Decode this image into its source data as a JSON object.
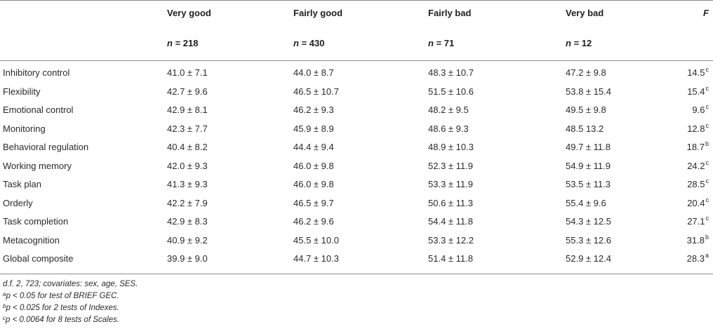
{
  "header": {
    "col1": "Very good",
    "col2": "Fairly good",
    "col3": "Fairly bad",
    "col4": "Very bad",
    "colF": "F"
  },
  "n_row": {
    "col1": "n = 218",
    "col2": "n = 430",
    "col3": "n = 71",
    "col4": "n = 12"
  },
  "rows": [
    {
      "label": "Inhibitory control",
      "c1": "41.0 ± 7.1",
      "c2": "44.0 ± 8.7",
      "c3": "48.3 ± 10.7",
      "c4": "47.2 ± 9.8",
      "f": "14.5",
      "sup": "c"
    },
    {
      "label": "Flexibility",
      "c1": "42.7 ± 9.6",
      "c2": "46.5 ± 10.7",
      "c3": "51.5 ± 10.6",
      "c4": "53.8 ± 15.4",
      "f": "15.4",
      "sup": "c"
    },
    {
      "label": "Emotional control",
      "c1": "42.9 ± 8.1",
      "c2": "46.2 ± 9.3",
      "c3": "48.2 ± 9.5",
      "c4": "49.5 ± 9.8",
      "f": "9.6",
      "sup": "c"
    },
    {
      "label": "Monitoring",
      "c1": "42.3 ± 7.7",
      "c2": "45.9 ± 8.9",
      "c3": "48.6 ± 9.3",
      "c4": "48.5 13.2",
      "f": "12.8",
      "sup": "c"
    },
    {
      "label": "Behavioral regulation",
      "c1": "40.4 ± 8.2",
      "c2": "44.4 ± 9.4",
      "c3": "48.9 ± 10.3",
      "c4": "49.7 ± 11.8",
      "f": "18.7",
      "sup": "b"
    },
    {
      "label": "Working memory",
      "c1": "42.0 ± 9.3",
      "c2": "46.0 ± 9.8",
      "c3": "52.3 ± 11.9",
      "c4": "54.9 ± 11.9",
      "f": "24.2",
      "sup": "c"
    },
    {
      "label": "Task plan",
      "c1": "41.3 ± 9.3",
      "c2": "46.0 ± 9.8",
      "c3": "53.3 ± 11.9",
      "c4": "53.5 ± 11.3",
      "f": "28.5",
      "sup": "c"
    },
    {
      "label": "Orderly",
      "c1": "42.2 ± 7.9",
      "c2": "46.5 ± 9.7",
      "c3": "50.6 ± 11.3",
      "c4": "55.4 ± 9.6",
      "f": "20.4",
      "sup": "c"
    },
    {
      "label": "Task completion",
      "c1": "42.9 ± 8.3",
      "c2": "46.2 ± 9.6",
      "c3": "54.4 ± 11.8",
      "c4": "54.3 ± 12.5",
      "f": "27.1",
      "sup": "c"
    },
    {
      "label": "Metacognition",
      "c1": "40.9 ± 9.2",
      "c2": "45.5 ± 10.0",
      "c3": "53.3 ± 12.2",
      "c4": "55.3 ± 12.6",
      "f": "31.8",
      "sup": "b"
    },
    {
      "label": "Global composite",
      "c1": "39.9 ± 9.0",
      "c2": "44.7 ± 10.3",
      "c3": "51.4 ± 11.8",
      "c4": "52.9 ± 12.4",
      "f": "28.3",
      "sup": "a"
    }
  ],
  "notes": {
    "line1": "d.f. 2, 723; covariates: sex, age, SES.",
    "line2_sup": "a",
    "line2": "p < 0.05 for test of BRIEF GEC.",
    "line3_sup": "b",
    "line3": "p < 0.025 for 2 tests of Indexes.",
    "line4_sup": "c",
    "line4": "p < 0.0064 for 8 tests of Scales."
  }
}
